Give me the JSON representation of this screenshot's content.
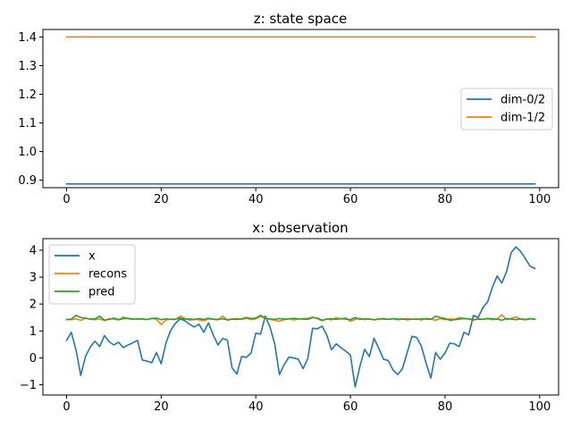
{
  "colors": {
    "c0": "#1f77b4",
    "c1": "#ff7f0e",
    "c2": "#2ca02c"
  },
  "chart_data": [
    {
      "type": "line",
      "title": "z: state space",
      "xlabel": "",
      "ylabel": "",
      "xlim": [
        -5,
        104
      ],
      "ylim": [
        0.874,
        1.426
      ],
      "xticks": [
        0,
        20,
        40,
        60,
        80,
        100
      ],
      "xtick_labels": [
        "0",
        "20",
        "40",
        "60",
        "80",
        "100"
      ],
      "yticks": [
        0.9,
        1.0,
        1.1,
        1.2,
        1.3,
        1.4
      ],
      "ytick_labels": [
        "0.9",
        "1.0",
        "1.1",
        "1.2",
        "1.3",
        "1.4"
      ],
      "legend_position": "center-right",
      "series": [
        {
          "name": "dim-0/2",
          "color": "#1f77b4",
          "x": [
            0,
            99
          ],
          "values": [
            0.887,
            0.887
          ]
        },
        {
          "name": "dim-1/2",
          "color": "#ff7f0e",
          "x": [
            0,
            99
          ],
          "values": [
            1.4,
            1.4
          ]
        }
      ]
    },
    {
      "type": "line",
      "title": "x: observation",
      "xlabel": "",
      "ylabel": "",
      "xlim": [
        -5,
        104
      ],
      "ylim": [
        -1.38,
        4.43
      ],
      "xticks": [
        0,
        20,
        40,
        60,
        80,
        100
      ],
      "xtick_labels": [
        "0",
        "20",
        "40",
        "60",
        "80",
        "100"
      ],
      "yticks": [
        -1,
        0,
        1,
        2,
        3,
        4
      ],
      "ytick_labels": [
        "−1",
        "0",
        "1",
        "2",
        "3",
        "4"
      ],
      "legend_position": "upper-left",
      "series": [
        {
          "name": "x",
          "color": "#1f77b4",
          "values": [
            0.65,
            0.95,
            0.3,
            -0.65,
            0.05,
            0.4,
            0.62,
            0.42,
            0.83,
            0.6,
            0.48,
            0.58,
            0.38,
            0.48,
            0.56,
            0.65,
            -0.08,
            -0.12,
            -0.18,
            0.2,
            -0.22,
            0.55,
            1.02,
            1.28,
            1.45,
            1.38,
            1.25,
            1.15,
            1.25,
            0.95,
            1.3,
            0.85,
            0.48,
            0.72,
            0.66,
            -0.38,
            -0.6,
            0.05,
            0.02,
            0.18,
            0.92,
            0.88,
            1.55,
            1.15,
            0.52,
            -0.62,
            -0.25,
            0.03,
            0.0,
            -0.05,
            -0.4,
            -0.02,
            1.1,
            1.08,
            1.18,
            0.85,
            0.3,
            0.52,
            0.38,
            0.25,
            0.1,
            -1.08,
            -0.32,
            0.32,
            0.05,
            0.73,
            0.35,
            -0.05,
            -0.1,
            -0.45,
            -0.62,
            -0.4,
            0.2,
            0.8,
            0.76,
            0.43,
            -0.2,
            -0.75,
            0.2,
            -0.05,
            0.18,
            0.55,
            0.52,
            0.42,
            0.95,
            0.85,
            1.58,
            1.5,
            1.87,
            2.08,
            2.62,
            3.04,
            2.78,
            3.2,
            3.92,
            4.12,
            3.95,
            3.68,
            3.4,
            3.32
          ]
        },
        {
          "name": "recons",
          "color": "#ff7f0e",
          "values": [
            1.43,
            1.42,
            1.45,
            1.4,
            1.47,
            1.44,
            1.42,
            1.45,
            1.39,
            1.46,
            1.44,
            1.41,
            1.52,
            1.45,
            1.43,
            1.46,
            1.44,
            1.42,
            1.47,
            1.43,
            1.24,
            1.41,
            1.44,
            1.42,
            1.55,
            1.47,
            1.4,
            1.44,
            1.42,
            1.38,
            1.45,
            1.43,
            1.41,
            1.55,
            1.4,
            1.44,
            1.46,
            1.43,
            1.47,
            1.42,
            1.45,
            1.54,
            1.47,
            1.43,
            1.4,
            1.36,
            1.42,
            1.45,
            1.41,
            1.44,
            1.46,
            1.47,
            1.51,
            1.46,
            1.38,
            1.45,
            1.41,
            1.5,
            1.44,
            1.49,
            1.36,
            1.43,
            1.47,
            1.42,
            1.45,
            1.41,
            1.44,
            1.47,
            1.43,
            1.45,
            1.42,
            1.44,
            1.46,
            1.43,
            1.45,
            1.41,
            1.47,
            1.44,
            1.4,
            1.46,
            1.42,
            1.45,
            1.43,
            1.5,
            1.47,
            1.44,
            1.4,
            1.46,
            1.43,
            1.45,
            1.42,
            1.44,
            1.6,
            1.42,
            1.47,
            1.52,
            1.44,
            1.41,
            1.45,
            1.43
          ]
        },
        {
          "name": "pred",
          "color": "#2ca02c",
          "values": [
            1.42,
            1.44,
            1.58,
            1.5,
            1.48,
            1.44,
            1.45,
            1.55,
            1.4,
            1.43,
            1.48,
            1.42,
            1.46,
            1.47,
            1.45,
            1.44,
            1.45,
            1.43,
            1.46,
            1.48,
            1.42,
            1.45,
            1.43,
            1.44,
            1.48,
            1.44,
            1.45,
            1.42,
            1.46,
            1.43,
            1.47,
            1.44,
            1.43,
            1.45,
            1.42,
            1.44,
            1.43,
            1.45,
            1.5,
            1.46,
            1.48,
            1.58,
            1.48,
            1.45,
            1.43,
            1.46,
            1.44,
            1.45,
            1.47,
            1.45,
            1.44,
            1.43,
            1.5,
            1.48,
            1.4,
            1.44,
            1.45,
            1.43,
            1.46,
            1.44,
            1.42,
            1.5,
            1.43,
            1.45,
            1.44,
            1.42,
            1.45,
            1.44,
            1.43,
            1.46,
            1.44,
            1.45,
            1.42,
            1.44,
            1.43,
            1.45,
            1.44,
            1.43,
            1.55,
            1.5,
            1.46,
            1.4,
            1.42,
            1.44,
            1.46,
            1.45,
            1.42,
            1.44,
            1.43,
            1.47,
            1.45,
            1.44,
            1.4,
            1.46,
            1.44,
            1.42,
            1.45,
            1.43,
            1.46,
            1.44
          ]
        }
      ]
    }
  ]
}
